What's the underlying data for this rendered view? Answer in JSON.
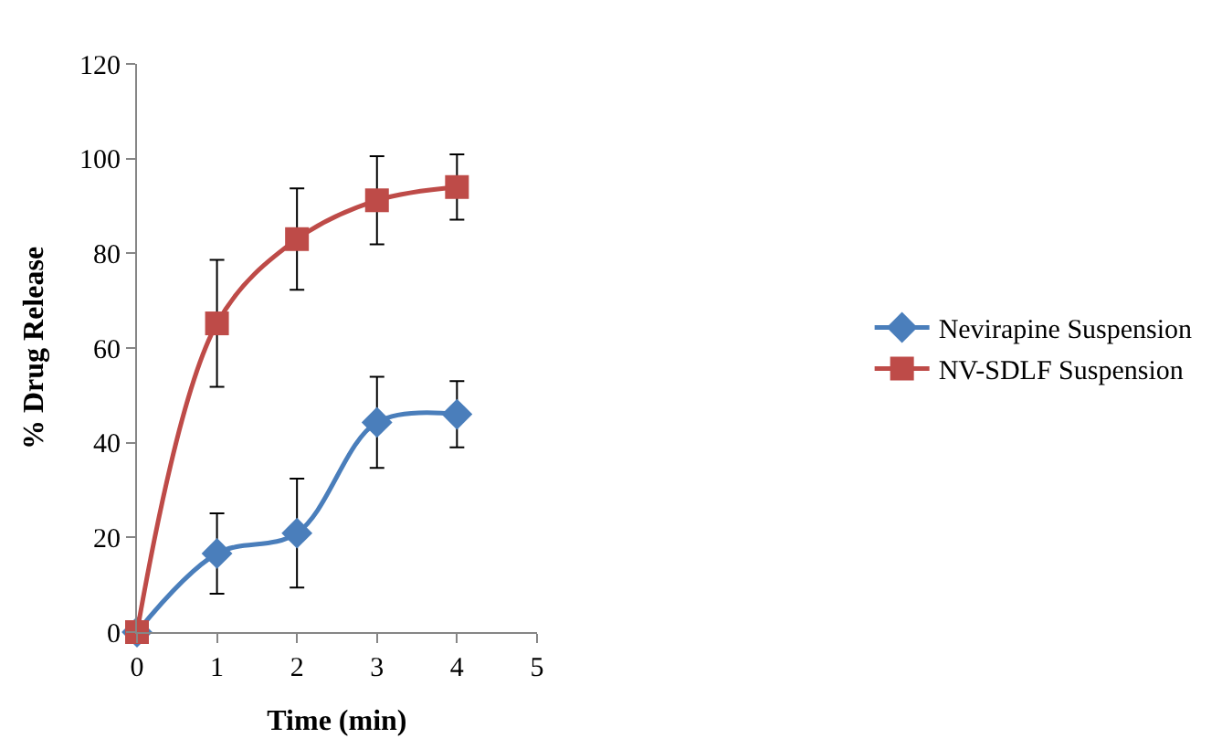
{
  "chart_data": {
    "type": "line",
    "xlabel": "Time (min)",
    "ylabel": "% Drug Release",
    "x": [
      0,
      1,
      2,
      3,
      4
    ],
    "series": [
      {
        "name": "Nevirapine Suspension",
        "color": "#4a7ebb",
        "marker": "diamond",
        "values": [
          0,
          16.6,
          20.9,
          44.3,
          46
        ],
        "errors": [
          null,
          8.5,
          11.5,
          9.6,
          7
        ]
      },
      {
        "name": "NV-SDLF Suspension",
        "color": "#be4b48",
        "marker": "square",
        "values": [
          0,
          65.2,
          83,
          91.2,
          94
        ],
        "errors": [
          null,
          13.4,
          10.7,
          9.3,
          6.9
        ]
      }
    ],
    "xlim": [
      0,
      5
    ],
    "xticks": [
      0,
      1,
      2,
      3,
      4,
      5
    ],
    "ylim": [
      0,
      120
    ],
    "yticks": [
      0,
      20,
      40,
      60,
      80,
      100,
      120
    ],
    "legend": "right",
    "line_style": "solid"
  }
}
